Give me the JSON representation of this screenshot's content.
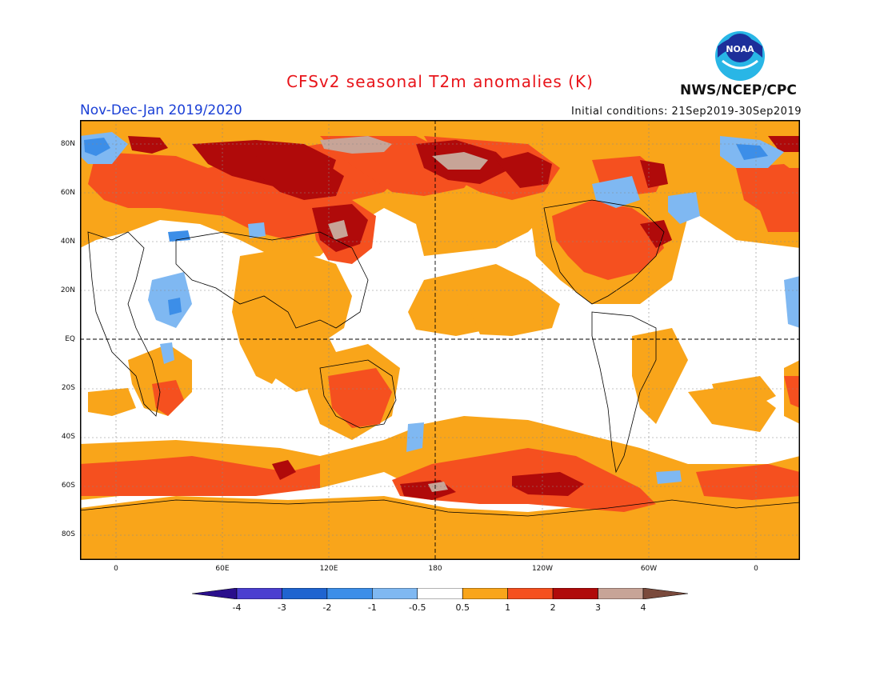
{
  "header": {
    "title": "CFSv2 seasonal T2m anomalies (K)",
    "season": "Nov-Dec-Jan 2019/2020",
    "initial_conditions": "Initial conditions: 21Sep2019-30Sep2019",
    "agency": "NWS/NCEP/CPC",
    "logo_text": "NOAA"
  },
  "map": {
    "lat_labels": [
      "80N",
      "60N",
      "40N",
      "20N",
      "EQ",
      "20S",
      "40S",
      "60S",
      "80S"
    ],
    "lon_labels": [
      "0",
      "60E",
      "120E",
      "180",
      "120W",
      "60W",
      "0"
    ]
  },
  "colorbar": {
    "labels": [
      "-4",
      "-3",
      "-2",
      "-1",
      "-0.5",
      "0.5",
      "1",
      "2",
      "3",
      "4"
    ],
    "colors": [
      "#2a0f8c",
      "#4b3fd0",
      "#1f64d0",
      "#3c8ee8",
      "#7fb8f2",
      "#ffffff",
      "#f9a51a",
      "#f5501f",
      "#b00a0a",
      "#c7a497",
      "#7a4a3c"
    ]
  }
}
